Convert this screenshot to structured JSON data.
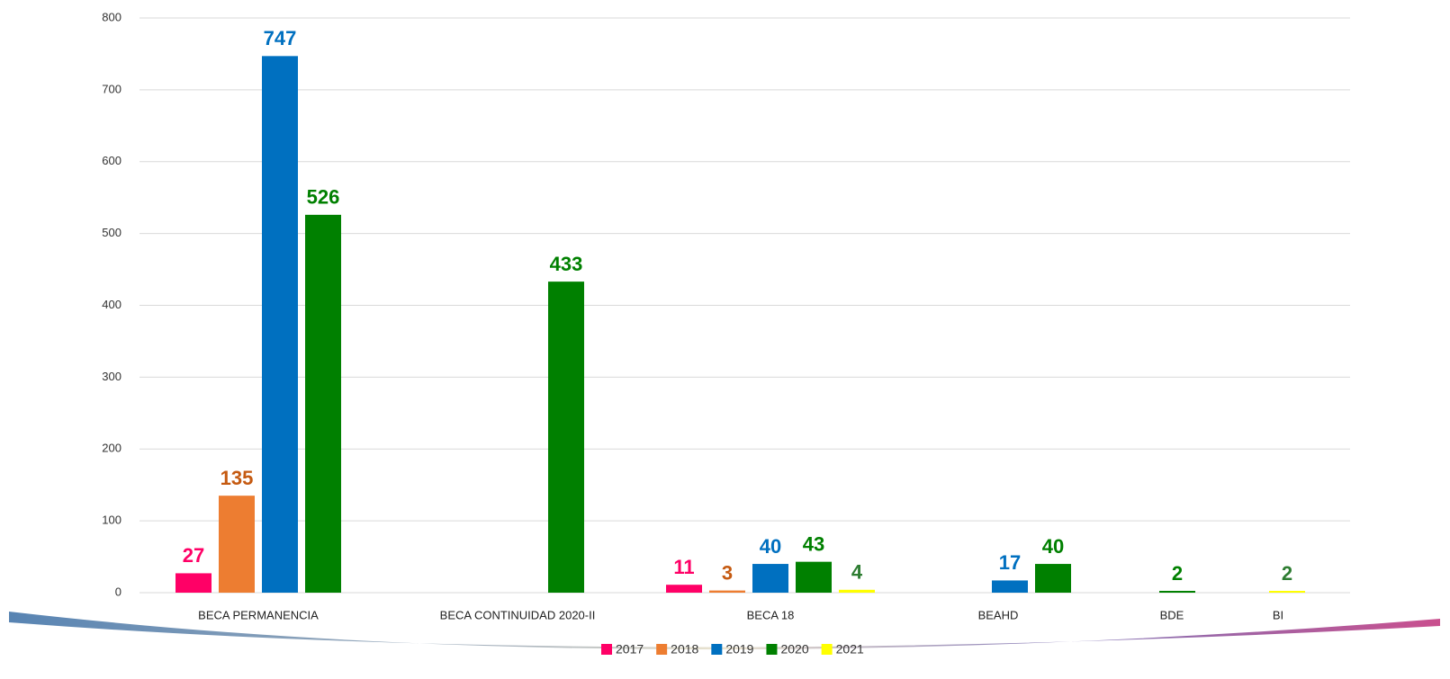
{
  "chart_data": {
    "type": "bar",
    "categories": [
      "BECA PERMANENCIA",
      "BECA CONTINUIDAD 2020-II",
      "BECA 18",
      "BEAHD",
      "BDE",
      "BI"
    ],
    "series": [
      {
        "name": "2017",
        "color": "#ff0066",
        "label_color": "#ff0066",
        "values": [
          27,
          null,
          11,
          null,
          null,
          null
        ]
      },
      {
        "name": "2018",
        "color": "#ed7d31",
        "label_color": "#c55a11",
        "values": [
          135,
          null,
          3,
          null,
          null,
          null
        ]
      },
      {
        "name": "2019",
        "color": "#0070c0",
        "label_color": "#0070c0",
        "values": [
          747,
          null,
          40,
          17,
          null,
          null
        ]
      },
      {
        "name": "2020",
        "color": "#008000",
        "label_color": "#008000",
        "values": [
          526,
          433,
          43,
          40,
          2,
          null
        ]
      },
      {
        "name": "2021",
        "color": "#ffff00",
        "label_color": "#2e7d32",
        "values": [
          null,
          null,
          4,
          null,
          null,
          2
        ]
      }
    ],
    "ylim": [
      0,
      800
    ],
    "yticks": [
      0,
      100,
      200,
      300,
      400,
      500,
      600,
      700,
      800
    ],
    "grid": true,
    "legend": "bottom"
  }
}
